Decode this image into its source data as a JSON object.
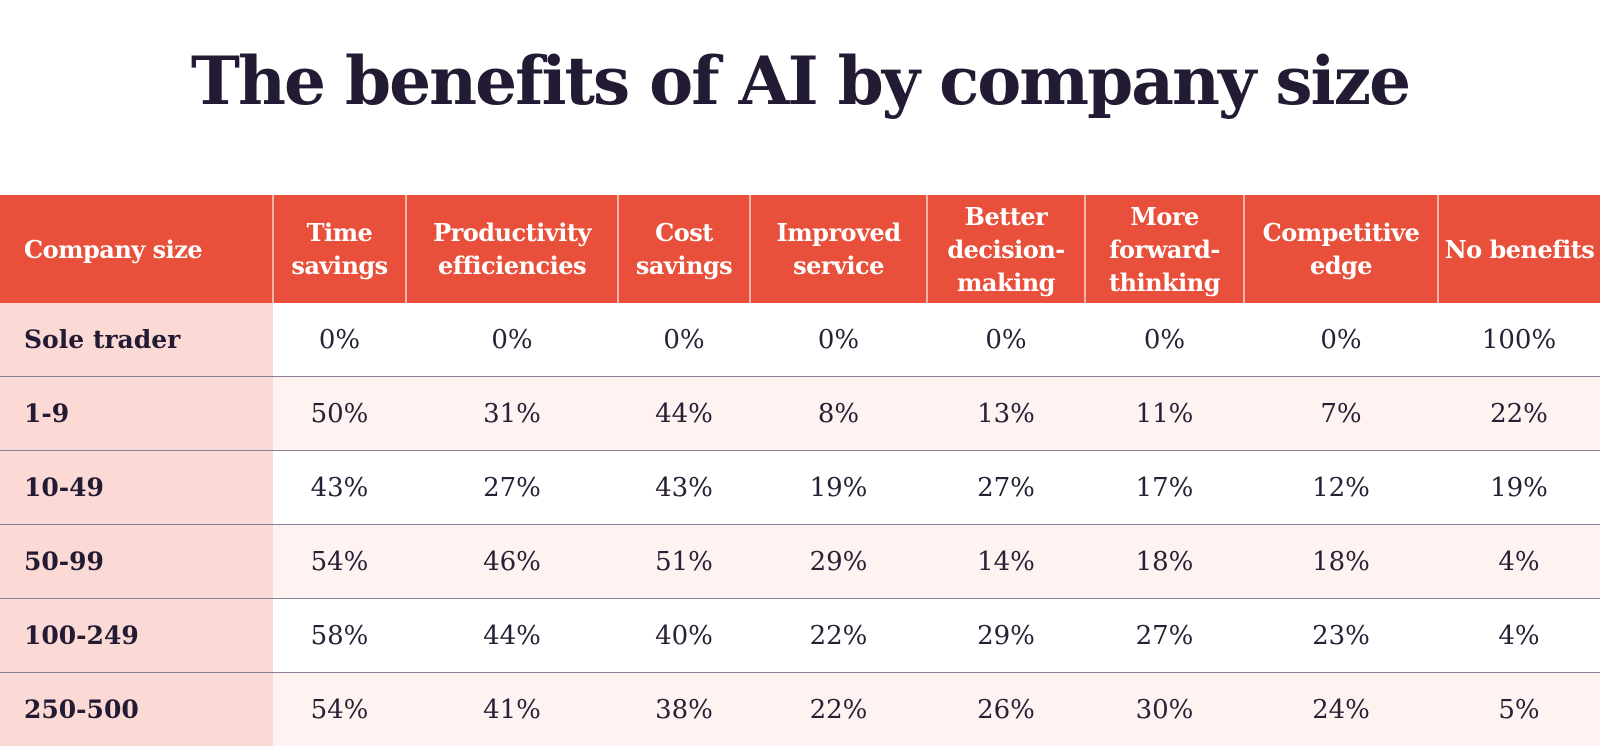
{
  "title": "The benefits of AI by company size",
  "colors": {
    "header_bg": "#e9503b",
    "row_header_bg": "#fbd9d4",
    "alt_row_bg": "#fff3f1",
    "text": "#241a33"
  },
  "chart_data": {
    "type": "table",
    "title": "The benefits of AI by company size",
    "row_header_label": "Company size",
    "columns": [
      "Time savings",
      "Productivity efficiencies",
      "Cost savings",
      "Improved service",
      "Better decision-making",
      "More forward-thinking",
      "Competitive edge",
      "No benefits"
    ],
    "rows": [
      {
        "label": "Sole trader",
        "values": [
          "0%",
          "0%",
          "0%",
          "0%",
          "0%",
          "0%",
          "0%",
          "100%"
        ]
      },
      {
        "label": "1-9",
        "values": [
          "50%",
          "31%",
          "44%",
          "8%",
          "13%",
          "11%",
          "7%",
          "22%"
        ]
      },
      {
        "label": "10-49",
        "values": [
          "43%",
          "27%",
          "43%",
          "19%",
          "27%",
          "17%",
          "12%",
          "19%"
        ]
      },
      {
        "label": "50-99",
        "values": [
          "54%",
          "46%",
          "51%",
          "29%",
          "14%",
          "18%",
          "18%",
          "4%"
        ]
      },
      {
        "label": "100-249",
        "values": [
          "58%",
          "44%",
          "40%",
          "22%",
          "29%",
          "27%",
          "23%",
          "4%"
        ]
      },
      {
        "label": "250-500",
        "values": [
          "54%",
          "41%",
          "38%",
          "22%",
          "26%",
          "30%",
          "24%",
          "5%"
        ]
      }
    ]
  }
}
